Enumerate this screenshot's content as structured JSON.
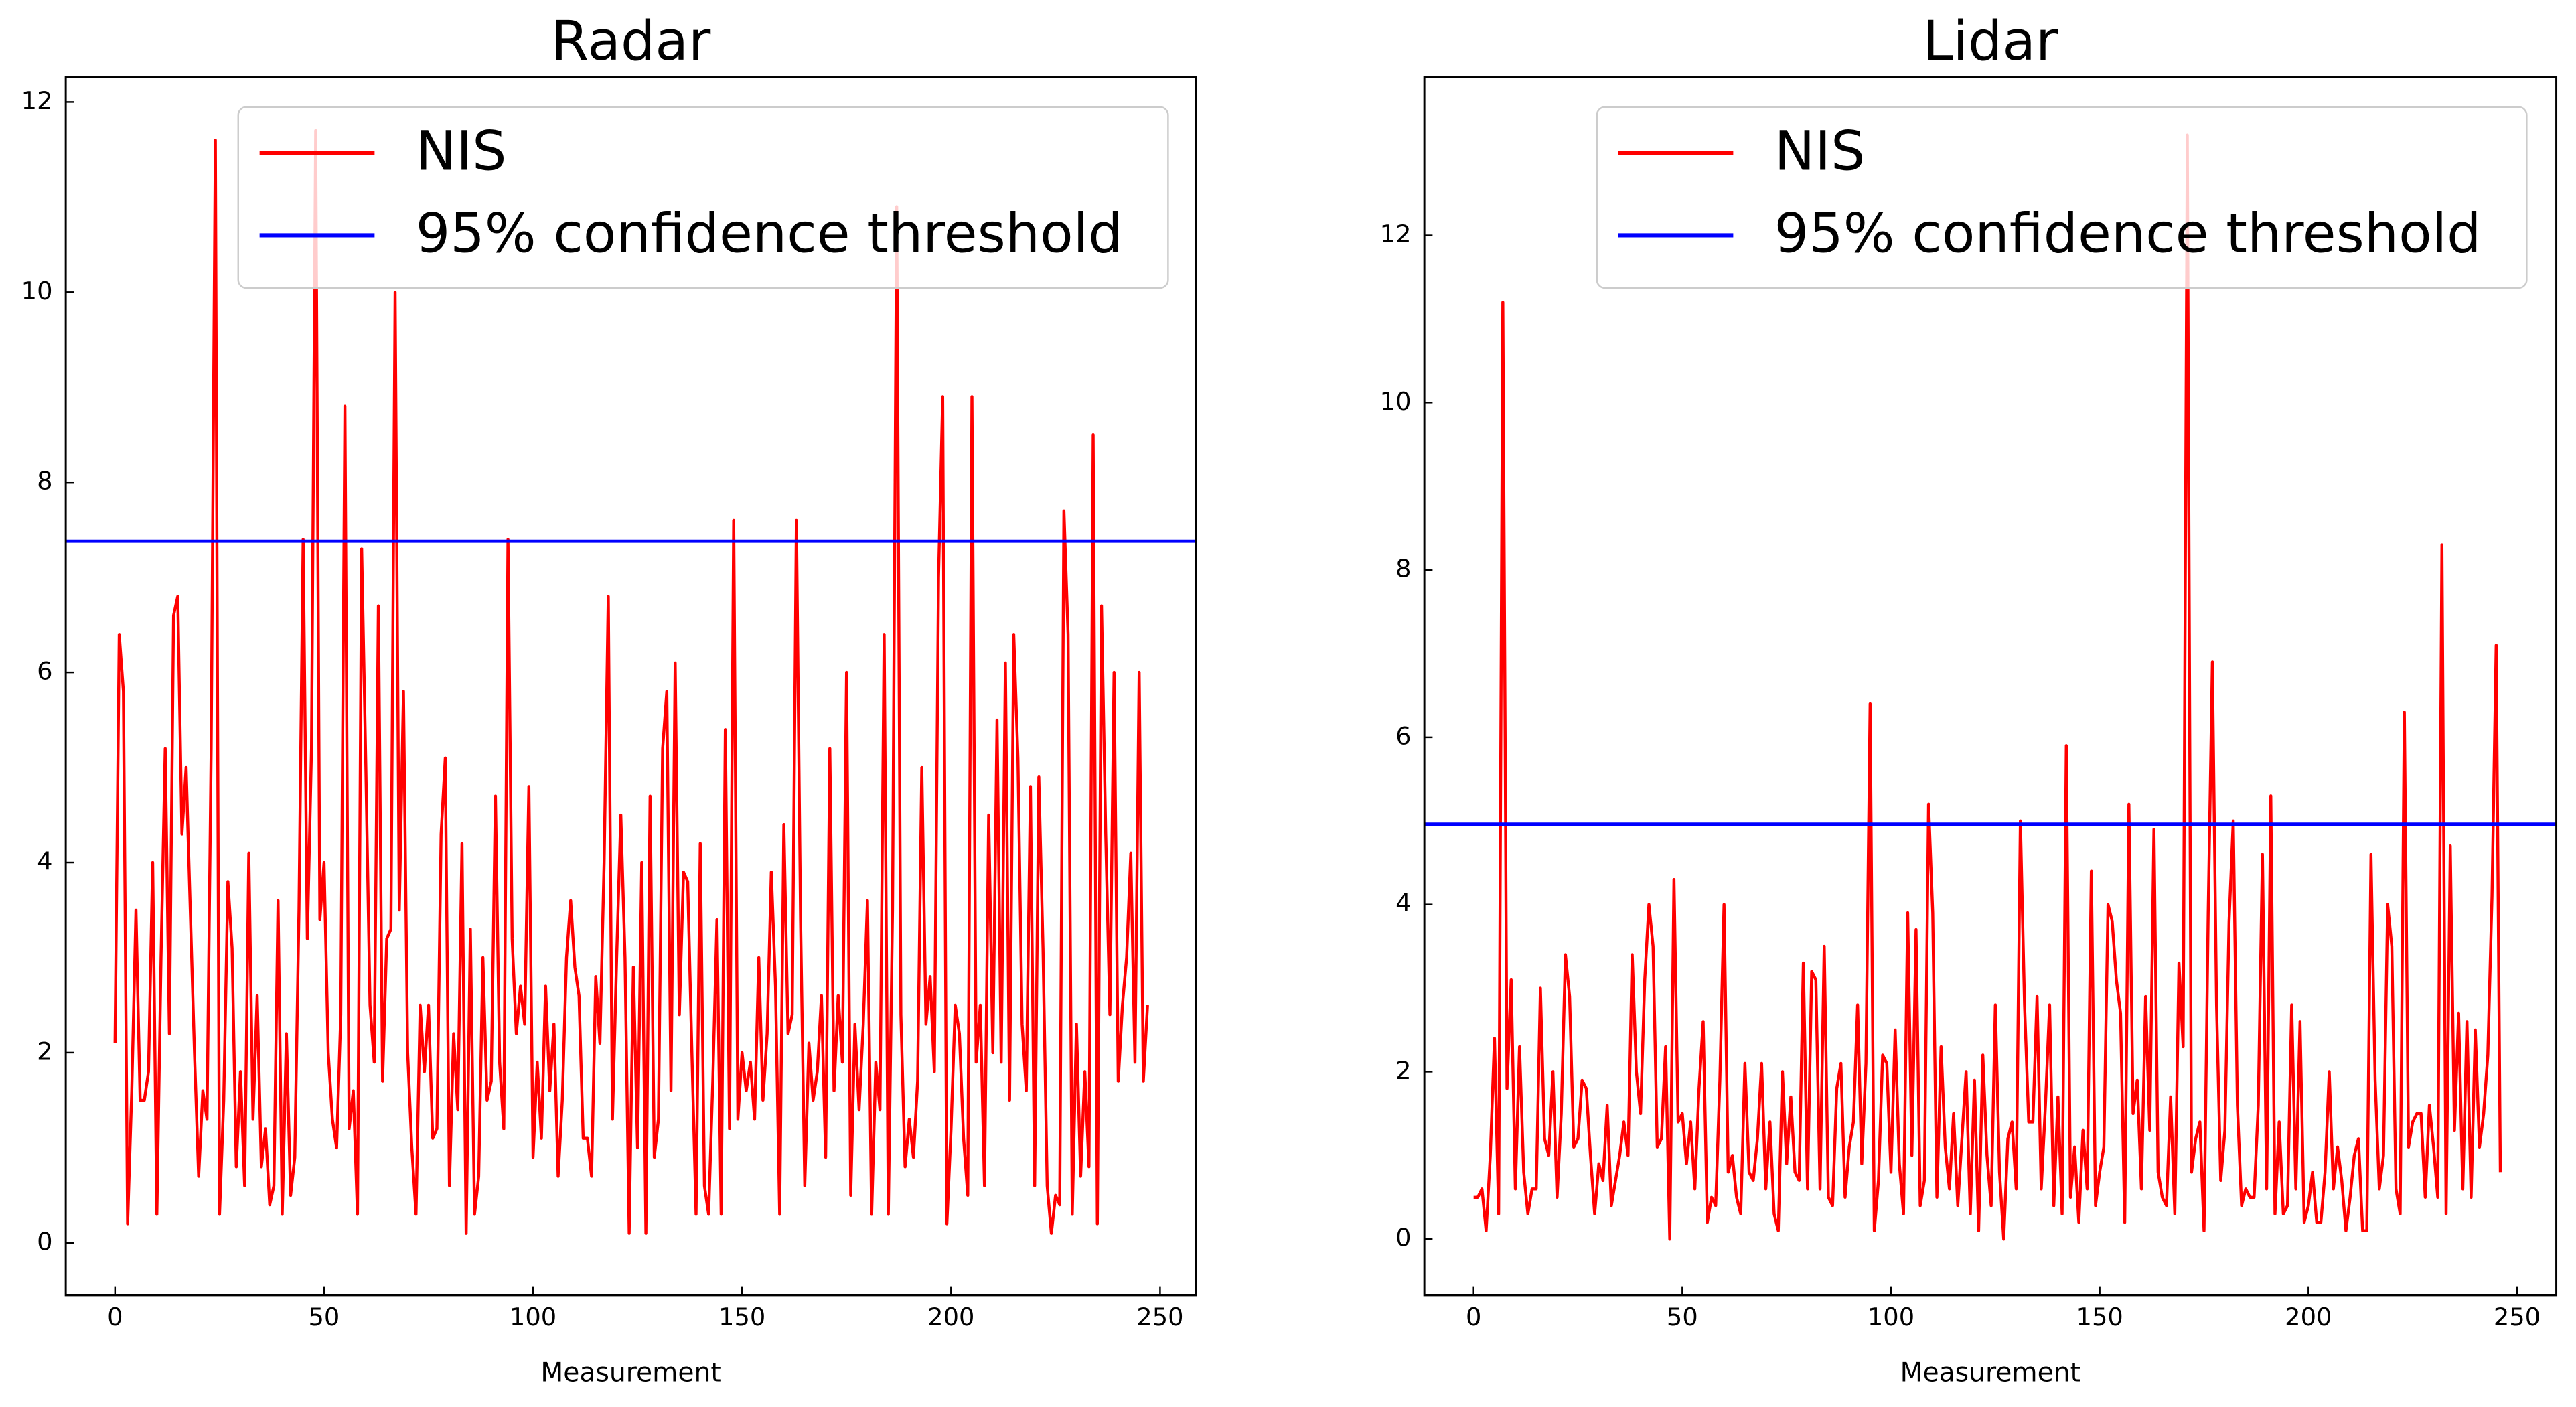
{
  "chart_data": [
    {
      "type": "line",
      "title": "Radar",
      "xlabel": "Measurement",
      "xlim": [
        -11.8,
        258.6
      ],
      "ylim": [
        -0.55,
        12.26
      ],
      "xticks": [
        0,
        50,
        100,
        150,
        200,
        250
      ],
      "yticks": [
        0,
        2,
        4,
        6,
        8,
        10,
        12
      ],
      "legend": "upper right",
      "x": [
        0,
        1,
        2,
        3,
        4,
        5,
        6,
        7,
        8,
        9,
        10,
        11,
        12,
        13,
        14,
        15,
        16,
        17,
        18,
        19,
        20,
        21,
        22,
        23,
        24,
        25,
        26,
        27,
        28,
        29,
        30,
        31,
        32,
        33,
        34,
        35,
        36,
        37,
        38,
        39,
        40,
        41,
        42,
        43,
        44,
        45,
        46,
        47,
        48,
        49,
        50,
        51,
        52,
        53,
        54,
        55,
        56,
        57,
        58,
        59,
        60,
        61,
        62,
        63,
        64,
        65,
        66,
        67,
        68,
        69,
        70,
        71,
        72,
        73,
        74,
        75,
        76,
        77,
        78,
        79,
        80,
        81,
        82,
        83,
        84,
        85,
        86,
        87,
        88,
        89,
        90,
        91,
        92,
        93,
        94,
        95,
        96,
        97,
        98,
        99,
        100,
        101,
        102,
        103,
        104,
        105,
        106,
        107,
        108,
        109,
        110,
        111,
        112,
        113,
        114,
        115,
        116,
        117,
        118,
        119,
        120,
        121,
        122,
        123,
        124,
        125,
        126,
        127,
        128,
        129,
        130,
        131,
        132,
        133,
        134,
        135,
        136,
        137,
        138,
        139,
        140,
        141,
        142,
        143,
        144,
        145,
        146,
        147,
        148,
        149,
        150,
        151,
        152,
        153,
        154,
        155,
        156,
        157,
        158,
        159,
        160,
        161,
        162,
        163,
        164,
        165,
        166,
        167,
        168,
        169,
        170,
        171,
        172,
        173,
        174,
        175,
        176,
        177,
        178,
        179,
        180,
        181,
        182,
        183,
        184,
        185,
        186,
        187,
        188,
        189,
        190,
        191,
        192,
        193,
        194,
        195,
        196,
        197,
        198,
        199,
        200,
        201,
        202,
        203,
        204,
        205,
        206,
        207,
        208,
        209,
        210,
        211,
        212,
        213,
        214,
        215,
        216,
        217,
        218,
        219,
        220,
        221,
        222,
        223,
        224,
        225,
        226,
        227,
        228,
        229,
        230,
        231,
        232,
        233,
        234,
        235,
        236,
        237,
        238,
        239,
        240,
        241,
        242,
        243,
        244,
        245,
        246,
        247
      ],
      "series": [
        {
          "name": "NIS",
          "color": "#ff0000",
          "values": [
            2.1,
            6.4,
            5.8,
            0.2,
            1.6,
            3.5,
            1.5,
            1.5,
            1.8,
            4.0,
            0.3,
            3.0,
            5.2,
            2.2,
            6.6,
            6.8,
            4.3,
            5.0,
            3.5,
            2.0,
            0.7,
            1.6,
            1.3,
            5.2,
            11.6,
            0.3,
            1.5,
            3.8,
            3.1,
            0.8,
            1.8,
            0.6,
            4.1,
            1.3,
            2.6,
            0.8,
            1.2,
            0.4,
            0.6,
            3.6,
            0.3,
            2.2,
            0.5,
            0.9,
            3.5,
            7.4,
            3.2,
            5.2,
            11.7,
            3.4,
            4.0,
            2.0,
            1.3,
            1.0,
            2.4,
            8.8,
            1.2,
            1.6,
            0.3,
            7.3,
            5.0,
            2.5,
            1.9,
            6.7,
            1.7,
            3.2,
            3.3,
            10.0,
            3.5,
            5.8,
            2.0,
            1.0,
            0.3,
            2.5,
            1.8,
            2.5,
            1.1,
            1.2,
            4.3,
            5.1,
            0.6,
            2.2,
            1.4,
            4.2,
            0.1,
            3.3,
            0.3,
            0.7,
            3.0,
            1.5,
            1.7,
            4.7,
            1.9,
            1.2,
            7.4,
            3.2,
            2.2,
            2.7,
            2.3,
            4.8,
            0.9,
            1.9,
            1.1,
            2.7,
            1.6,
            2.3,
            0.7,
            1.5,
            3.0,
            3.6,
            2.9,
            2.6,
            1.1,
            1.1,
            0.7,
            2.8,
            2.1,
            4.0,
            6.8,
            1.3,
            3.0,
            4.5,
            3.0,
            0.1,
            2.9,
            1.0,
            4.0,
            0.1,
            4.7,
            0.9,
            1.3,
            5.2,
            5.8,
            1.6,
            6.1,
            2.4,
            3.9,
            3.8,
            2.0,
            0.3,
            4.2,
            0.6,
            0.3,
            1.7,
            3.4,
            0.3,
            5.4,
            1.2,
            7.6,
            1.3,
            2.0,
            1.6,
            1.9,
            1.3,
            3.0,
            1.5,
            2.2,
            3.9,
            2.7,
            0.3,
            4.4,
            2.2,
            2.4,
            7.6,
            3.4,
            0.6,
            2.1,
            1.5,
            1.8,
            2.6,
            0.9,
            5.2,
            1.6,
            2.6,
            1.9,
            6.0,
            0.5,
            2.3,
            1.4,
            2.3,
            3.6,
            0.3,
            1.9,
            1.4,
            6.4,
            0.3,
            3.5,
            10.9,
            2.4,
            0.8,
            1.3,
            0.9,
            1.7,
            5.0,
            2.3,
            2.8,
            1.8,
            7.0,
            8.9,
            0.2,
            1.2,
            2.5,
            2.2,
            1.1,
            0.5,
            8.9,
            1.9,
            2.5,
            0.6,
            4.5,
            2.0,
            5.5,
            1.9,
            6.1,
            1.5,
            6.4,
            5.1,
            2.3,
            1.6,
            4.8,
            0.6,
            4.9,
            3.1,
            0.6,
            0.1,
            0.5,
            0.4,
            7.7,
            6.4,
            0.3,
            2.3,
            0.7,
            1.8,
            0.8,
            8.5,
            0.2,
            6.7,
            4.3,
            2.4,
            6.0,
            1.7,
            2.5,
            3.0,
            4.1,
            1.9,
            6.0,
            1.7,
            2.5
          ]
        }
      ],
      "hlines": [
        {
          "name": "95% confidence threshold",
          "color": "#0000ff",
          "value": 7.38
        }
      ]
    },
    {
      "type": "line",
      "title": "Lidar",
      "xlabel": "Measurement",
      "xlim": [
        -11.8,
        259.4
      ],
      "ylim": [
        -0.67,
        13.89
      ],
      "xticks": [
        0,
        50,
        100,
        150,
        200,
        250
      ],
      "yticks": [
        0,
        2,
        4,
        6,
        8,
        10,
        12
      ],
      "legend": "upper right",
      "x": [
        0,
        1,
        2,
        3,
        4,
        5,
        6,
        7,
        8,
        9,
        10,
        11,
        12,
        13,
        14,
        15,
        16,
        17,
        18,
        19,
        20,
        21,
        22,
        23,
        24,
        25,
        26,
        27,
        28,
        29,
        30,
        31,
        32,
        33,
        34,
        35,
        36,
        37,
        38,
        39,
        40,
        41,
        42,
        43,
        44,
        45,
        46,
        47,
        48,
        49,
        50,
        51,
        52,
        53,
        54,
        55,
        56,
        57,
        58,
        59,
        60,
        61,
        62,
        63,
        64,
        65,
        66,
        67,
        68,
        69,
        70,
        71,
        72,
        73,
        74,
        75,
        76,
        77,
        78,
        79,
        80,
        81,
        82,
        83,
        84,
        85,
        86,
        87,
        88,
        89,
        90,
        91,
        92,
        93,
        94,
        95,
        96,
        97,
        98,
        99,
        100,
        101,
        102,
        103,
        104,
        105,
        106,
        107,
        108,
        109,
        110,
        111,
        112,
        113,
        114,
        115,
        116,
        117,
        118,
        119,
        120,
        121,
        122,
        123,
        124,
        125,
        126,
        127,
        128,
        129,
        130,
        131,
        132,
        133,
        134,
        135,
        136,
        137,
        138,
        139,
        140,
        141,
        142,
        143,
        144,
        145,
        146,
        147,
        148,
        149,
        150,
        151,
        152,
        153,
        154,
        155,
        156,
        157,
        158,
        159,
        160,
        161,
        162,
        163,
        164,
        165,
        166,
        167,
        168,
        169,
        170,
        171,
        172,
        173,
        174,
        175,
        176,
        177,
        178,
        179,
        180,
        181,
        182,
        183,
        184,
        185,
        186,
        187,
        188,
        189,
        190,
        191,
        192,
        193,
        194,
        195,
        196,
        197,
        198,
        199,
        200,
        201,
        202,
        203,
        204,
        205,
        206,
        207,
        208,
        209,
        210,
        211,
        212,
        213,
        214,
        215,
        216,
        217,
        218,
        219,
        220,
        221,
        222,
        223,
        224,
        225,
        226,
        227,
        228,
        229,
        230,
        231,
        232,
        233,
        234,
        235,
        236,
        237,
        238,
        239,
        240,
        241,
        242,
        243,
        244,
        245,
        246
      ],
      "series": [
        {
          "name": "NIS",
          "color": "#ff0000",
          "values": [
            0.5,
            0.5,
            0.6,
            0.1,
            1.0,
            2.4,
            0.3,
            11.2,
            1.8,
            3.1,
            0.6,
            2.3,
            0.8,
            0.3,
            0.6,
            0.6,
            3.0,
            1.2,
            1.0,
            2.0,
            0.5,
            1.5,
            3.4,
            2.9,
            1.1,
            1.2,
            1.9,
            1.8,
            1.0,
            0.3,
            0.9,
            0.7,
            1.6,
            0.4,
            0.7,
            1.0,
            1.4,
            1.0,
            3.4,
            2.0,
            1.5,
            3.1,
            4.0,
            3.5,
            1.1,
            1.2,
            2.3,
            0.0,
            4.3,
            1.4,
            1.5,
            0.9,
            1.4,
            0.6,
            1.8,
            2.6,
            0.2,
            0.5,
            0.4,
            1.9,
            4.0,
            0.8,
            1.0,
            0.5,
            0.3,
            2.1,
            0.8,
            0.7,
            1.2,
            2.1,
            0.6,
            1.4,
            0.3,
            0.1,
            2.0,
            0.9,
            1.7,
            0.8,
            0.7,
            3.3,
            0.6,
            3.2,
            3.1,
            0.6,
            3.5,
            0.5,
            0.4,
            1.8,
            2.1,
            0.5,
            1.1,
            1.4,
            2.8,
            0.9,
            2.1,
            6.4,
            0.1,
            0.7,
            2.2,
            2.1,
            0.8,
            2.5,
            0.9,
            0.3,
            3.9,
            1.0,
            3.7,
            0.4,
            0.7,
            5.2,
            3.9,
            0.5,
            2.3,
            1.1,
            0.6,
            1.5,
            0.4,
            1.2,
            2.0,
            0.3,
            1.9,
            0.1,
            2.2,
            1.0,
            0.4,
            2.8,
            0.8,
            0.0,
            1.2,
            1.4,
            0.6,
            5.0,
            2.8,
            1.4,
            1.4,
            2.9,
            0.6,
            1.6,
            2.8,
            0.4,
            1.7,
            0.3,
            5.9,
            0.5,
            1.1,
            0.2,
            1.3,
            0.6,
            4.4,
            0.4,
            0.8,
            1.1,
            4.0,
            3.8,
            3.1,
            2.7,
            0.2,
            5.2,
            1.5,
            1.9,
            0.6,
            2.9,
            1.3,
            4.9,
            0.8,
            0.5,
            0.4,
            1.7,
            0.3,
            3.3,
            2.3,
            13.2,
            0.8,
            1.2,
            1.4,
            0.1,
            3.9,
            6.9,
            2.8,
            0.7,
            1.3,
            3.8,
            5.0,
            1.6,
            0.4,
            0.6,
            0.5,
            0.5,
            1.6,
            4.6,
            0.6,
            5.3,
            0.3,
            1.4,
            0.3,
            0.4,
            2.8,
            0.6,
            2.6,
            0.2,
            0.4,
            0.8,
            0.2,
            0.2,
            0.8,
            2.0,
            0.6,
            1.1,
            0.7,
            0.1,
            0.5,
            1.0,
            1.2,
            0.1,
            0.1,
            4.6,
            1.9,
            0.6,
            1.0,
            4.0,
            3.5,
            0.6,
            0.3,
            6.3,
            1.1,
            1.4,
            1.5,
            1.5,
            0.5,
            1.6,
            1.1,
            0.5,
            8.3,
            0.3,
            4.7,
            1.3,
            2.7,
            0.6,
            2.6,
            0.5,
            2.5,
            1.1,
            1.5,
            2.2,
            4.1,
            7.1,
            0.8
          ]
        }
      ],
      "hlines": [
        {
          "name": "95% confidence threshold",
          "color": "#0000ff",
          "value": 4.96
        }
      ]
    }
  ]
}
